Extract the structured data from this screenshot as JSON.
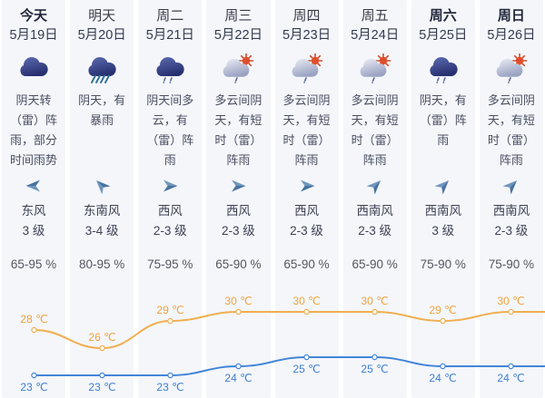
{
  "colors": {
    "stripe_bg": "#f4f6fa",
    "wind_arrow_light": "#6f96bd",
    "wind_arrow_dark": "#48739f"
  },
  "days": [
    {
      "name": "今天",
      "date": "5月19日",
      "emphasis": true,
      "icon": "overcast-icon",
      "desc": "阴天转（雷）阵雨，部分时间雨势较大",
      "wind_direction": "东风",
      "wind_level": "3 级",
      "wind_arrow_deg": -90,
      "humidity": "65-95 %"
    },
    {
      "name": "明天",
      "date": "5月20日",
      "emphasis": false,
      "icon": "rainstorm-icon",
      "desc": "阴天，有暴雨",
      "wind_direction": "东南风",
      "wind_level": "3-4 级",
      "wind_arrow_deg": -45,
      "humidity": "80-95 %"
    },
    {
      "name": "周二",
      "date": "5月21日",
      "emphasis": false,
      "icon": "overcast-showers-icon",
      "desc": "阴天间多云，有（雷）阵雨",
      "wind_direction": "西风",
      "wind_level": "2-3 级",
      "wind_arrow_deg": 90,
      "humidity": "75-95 %"
    },
    {
      "name": "周三",
      "date": "5月22日",
      "emphasis": false,
      "icon": "cloudy-sun-showers-icon",
      "desc": "多云间阴天，有短时（雷）阵雨",
      "wind_direction": "西风",
      "wind_level": "2-3 级",
      "wind_arrow_deg": 90,
      "humidity": "65-90 %"
    },
    {
      "name": "周四",
      "date": "5月23日",
      "emphasis": false,
      "icon": "cloudy-sun-showers-icon",
      "desc": "多云间阴天，有短时（雷）阵雨",
      "wind_direction": "西风",
      "wind_level": "2-3 级",
      "wind_arrow_deg": 90,
      "humidity": "65-90 %"
    },
    {
      "name": "周五",
      "date": "5月24日",
      "emphasis": false,
      "icon": "cloudy-sun-showers-icon",
      "desc": "多云间阴天，有短时（雷）阵雨",
      "wind_direction": "西南风",
      "wind_level": "2-3 级",
      "wind_arrow_deg": 45,
      "humidity": "65-90 %"
    },
    {
      "name": "周六",
      "date": "5月25日",
      "emphasis": true,
      "icon": "overcast-showers-icon",
      "desc": "阴天，有（雷）阵雨",
      "wind_direction": "西南风",
      "wind_level": "3 级",
      "wind_arrow_deg": 45,
      "humidity": "75-90 %"
    },
    {
      "name": "周日",
      "date": "5月26日",
      "emphasis": true,
      "icon": "cloudy-sun-showers-icon",
      "desc": "多云间阴天，有短时（雷）阵雨",
      "wind_direction": "西南风",
      "wind_level": "2-3 级",
      "wind_arrow_deg": 45,
      "humidity": "75-90 %"
    }
  ],
  "chart_data": {
    "type": "line",
    "categories": [
      "今天",
      "明天",
      "周二",
      "周三",
      "周四",
      "周五",
      "周六",
      "周日"
    ],
    "series": [
      {
        "name": "high",
        "values": [
          28,
          26,
          29,
          30,
          30,
          30,
          29,
          30
        ],
        "color": "#f0ae4e",
        "label_color": "#f0a23c",
        "label_position": "above"
      },
      {
        "name": "low",
        "values": [
          23,
          23,
          23,
          24,
          25,
          25,
          24,
          24
        ],
        "color": "#4285d8",
        "label_color": "#3d7ed2",
        "label_position": "below"
      }
    ],
    "unit": "℃",
    "point_label_format": "{v} ℃",
    "ylim": [
      22,
      31
    ],
    "grid": false,
    "legend": false
  }
}
